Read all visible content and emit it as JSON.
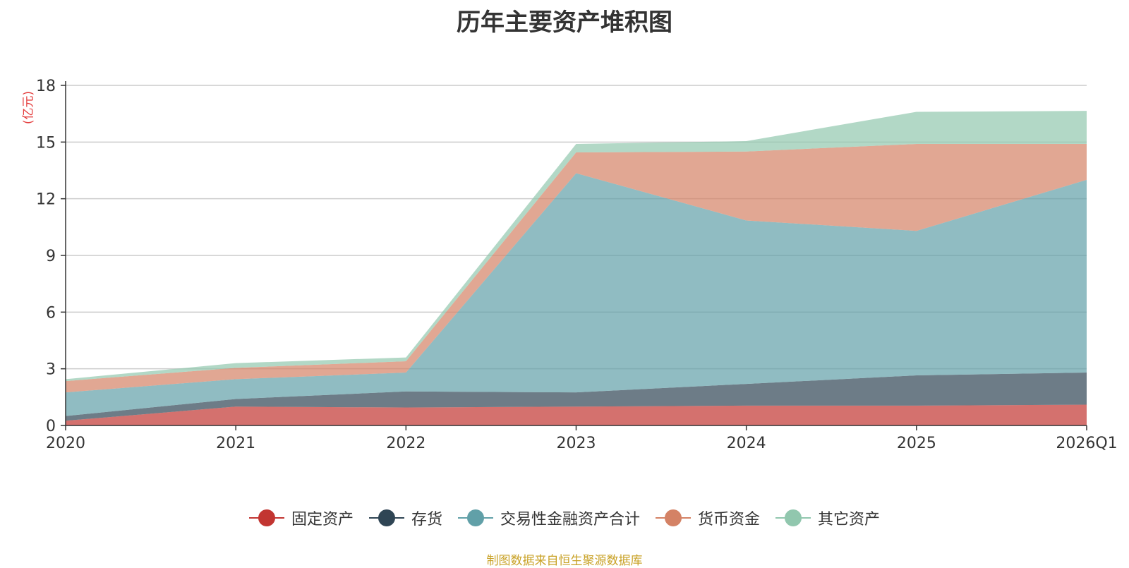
{
  "chart_data": {
    "type": "area",
    "stacked": true,
    "title": "历年主要资产堆积图",
    "ylabel": "(亿元)",
    "categories": [
      "2020",
      "2021",
      "2022",
      "2023",
      "2024",
      "2025",
      "2026Q1"
    ],
    "ylim": [
      0,
      18
    ],
    "yticks": [
      0,
      3,
      6,
      9,
      12,
      15,
      18
    ],
    "grid": true,
    "legend_position": "bottom",
    "series": [
      {
        "name": "固定资产",
        "color": "#c23531",
        "values": [
          0.25,
          1.0,
          0.95,
          1.0,
          1.05,
          1.05,
          1.1
        ]
      },
      {
        "name": "存货",
        "color": "#2f4554",
        "values": [
          0.25,
          0.4,
          0.85,
          0.75,
          1.15,
          1.6,
          1.7
        ]
      },
      {
        "name": "交易性金融资产合计",
        "color": "#61a0a8",
        "values": [
          1.25,
          1.05,
          1.0,
          11.6,
          8.65,
          7.65,
          10.2
        ]
      },
      {
        "name": "货币资金",
        "color": "#d48265",
        "values": [
          0.6,
          0.6,
          0.6,
          1.1,
          3.65,
          4.6,
          1.9
        ]
      },
      {
        "name": "其它资产",
        "color": "#91c7ae",
        "values": [
          0.1,
          0.25,
          0.2,
          0.45,
          0.55,
          1.7,
          1.75
        ]
      }
    ]
  },
  "source": "制图数据来自恒生聚源数据库"
}
